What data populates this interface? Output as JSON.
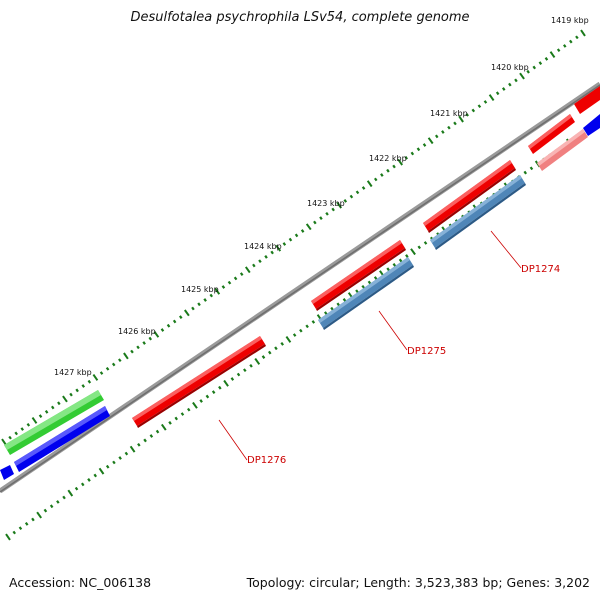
{
  "title": "Desulfotalea psychrophila LSv54, complete genome",
  "footer": {
    "accession": "Accession: NC_006138",
    "topology": "Topology: circular; Length: 3,523,383 bp; Genes: 3,202"
  },
  "kbp_labels": [
    "1419 kbp",
    "1420 kbp",
    "1421 kbp",
    "1422 kbp",
    "1423 kbp",
    "1424 kbp",
    "1425 kbp",
    "1426 kbp",
    "1427 kbp"
  ],
  "gene_labels": [
    "DP1274",
    "DP1275",
    "DP1276"
  ],
  "colors": {
    "backbone": "#808080",
    "tick": "#1a7a1a",
    "gene_red": "#ee0000",
    "gene_red_light": "#f08080",
    "gene_blue": "#0000ee",
    "gene_steelblue": "#4f86b8",
    "gene_green": "#33cc33",
    "label_red": "#cc0000"
  }
}
